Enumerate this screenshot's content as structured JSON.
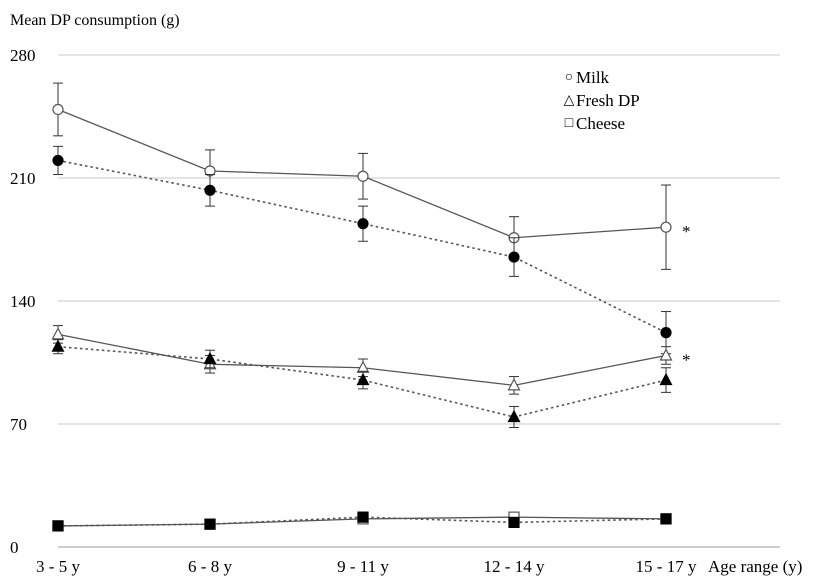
{
  "chart_data": {
    "type": "line",
    "title": "",
    "ylabel": "Mean DP consumption (g)",
    "xlabel": "Age range (y)",
    "categories": [
      "3 - 5 y",
      "6 - 8 y",
      "9 - 11 y",
      "12 - 14 y",
      "15 - 17 y"
    ],
    "ylim": [
      0,
      280
    ],
    "yticks": [
      0,
      70,
      140,
      210,
      280
    ],
    "grid": true,
    "legend_position": "top-right",
    "legend": [
      {
        "symbol": "○",
        "label": "Milk"
      },
      {
        "symbol": "△",
        "label": "Fresh DP"
      },
      {
        "symbol": "□",
        "label": "Cheese"
      }
    ],
    "series": [
      {
        "group": "Milk",
        "marker": "circle-open",
        "line": "solid",
        "values": [
          249,
          214,
          211,
          176,
          182
        ],
        "errors": [
          15,
          12,
          13,
          12,
          24
        ]
      },
      {
        "group": "Milk",
        "marker": "circle-filled",
        "line": "dotted",
        "values": [
          220,
          203,
          184,
          165,
          122
        ],
        "errors": [
          8,
          9,
          10,
          11,
          12
        ]
      },
      {
        "group": "Fresh DP",
        "marker": "triangle-open",
        "line": "solid",
        "values": [
          121,
          104,
          102,
          92,
          109
        ],
        "errors": [
          5,
          5,
          5,
          5,
          5
        ]
      },
      {
        "group": "Fresh DP",
        "marker": "triangle-filled",
        "line": "dotted",
        "values": [
          114,
          107,
          95,
          74,
          95
        ],
        "errors": [
          4,
          5,
          5,
          6,
          7
        ]
      },
      {
        "group": "Cheese",
        "marker": "square-open",
        "line": "solid",
        "values": [
          12,
          13,
          16,
          17,
          16
        ],
        "errors": [
          1,
          1,
          1,
          1,
          1
        ]
      },
      {
        "group": "Cheese",
        "marker": "square-filled",
        "line": "dotted",
        "values": [
          12,
          13,
          17,
          14,
          16
        ],
        "errors": [
          1,
          1,
          1,
          1,
          1
        ]
      }
    ],
    "annotations": [
      {
        "text": "*",
        "category": "15 - 17 y",
        "y": 182
      },
      {
        "text": "*",
        "category": "15 - 17 y",
        "y": 109
      }
    ]
  }
}
